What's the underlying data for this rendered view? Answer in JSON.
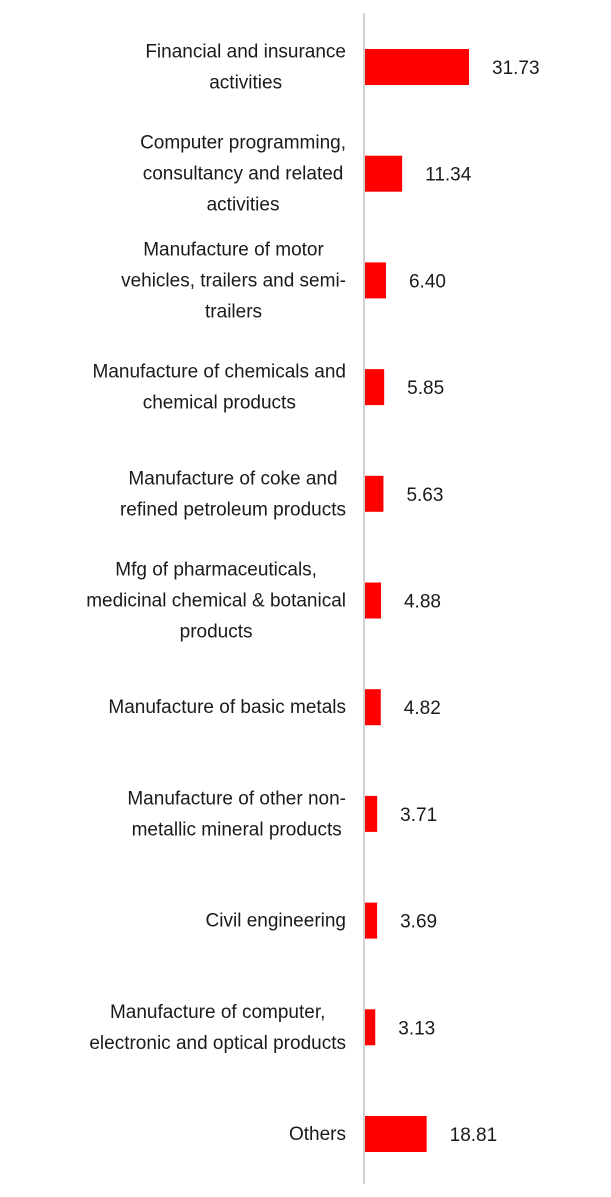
{
  "colors": {
    "bar": "#ff0000",
    "axis": "#d0d0d0",
    "text": "#1a1a1a"
  },
  "chart_data": {
    "type": "bar",
    "orientation": "horizontal",
    "title": "",
    "xlabel": "",
    "ylabel": "",
    "xlim": [
      0,
      31.73
    ],
    "grid": false,
    "legend": "none",
    "categories": [
      [
        "Financial and insurance",
        "activities"
      ],
      [
        "Computer programming,",
        "consultancy and related",
        "activities"
      ],
      [
        "Manufacture of motor",
        "vehicles, trailers and semi-",
        "trailers"
      ],
      [
        "Manufacture of chemicals and",
        "chemical products"
      ],
      [
        "Manufacture of coke and",
        "refined petroleum products"
      ],
      [
        "Mfg of pharmaceuticals,",
        "medicinal chemical & botanical",
        "products"
      ],
      [
        "Manufacture of basic metals"
      ],
      [
        "Manufacture of other non-",
        "metallic mineral products"
      ],
      [
        "Civil engineering"
      ],
      [
        "Manufacture of computer,",
        "electronic and optical products"
      ],
      [
        "Others"
      ]
    ],
    "values": [
      31.73,
      11.34,
      6.4,
      5.85,
      5.63,
      4.88,
      4.82,
      3.71,
      3.69,
      3.13,
      18.81
    ],
    "value_labels": [
      "31.73",
      "11.34",
      "6.40",
      "5.85",
      "5.63",
      "4.88",
      "4.82",
      "3.71",
      "3.69",
      "3.13",
      "18.81"
    ]
  }
}
